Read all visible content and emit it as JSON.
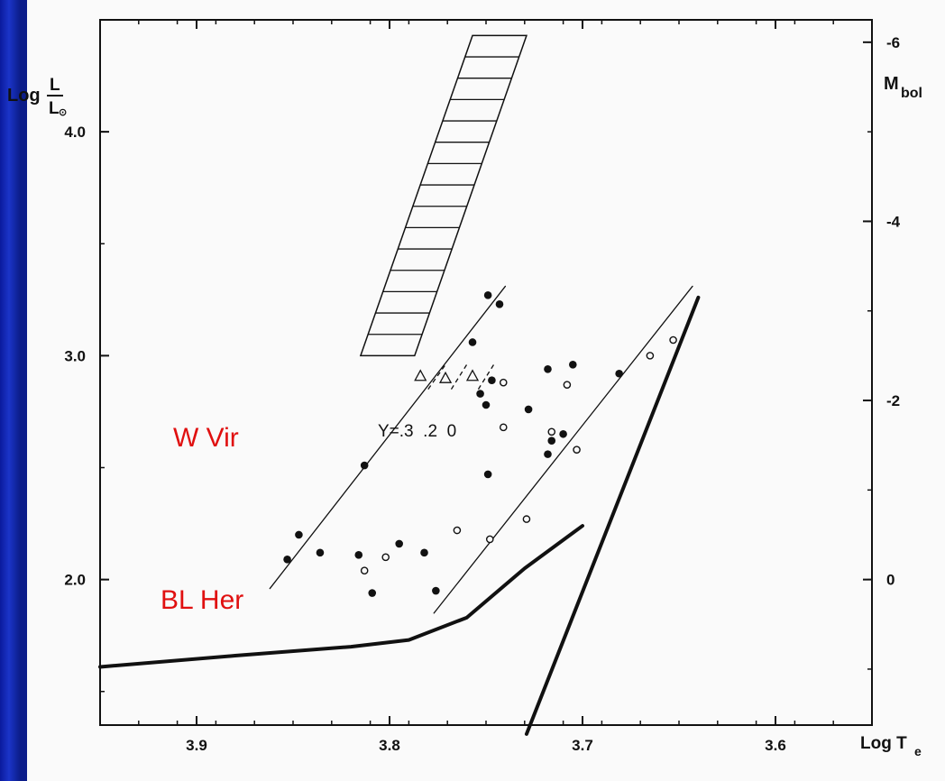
{
  "chart_data": {
    "type": "scatter",
    "xlabel": "Log T",
    "xlabel_sub": "e",
    "ylabel_left": "Log",
    "ylabel_left_num": "L",
    "ylabel_left_den": "L",
    "ylabel_left_den_sub": "⊙",
    "ylabel_right": "M",
    "ylabel_right_sub": "bol",
    "xlim": [
      3.95,
      3.55
    ],
    "ylim": [
      1.35,
      4.5
    ],
    "x_ticks": [
      {
        "value": 3.9,
        "label": "3.9"
      },
      {
        "value": 3.8,
        "label": "3.8"
      },
      {
        "value": 3.7,
        "label": "3.7"
      },
      {
        "value": 3.6,
        "label": "3.6"
      }
    ],
    "y_ticks_left": [
      {
        "value": 2.0,
        "label": "2.0"
      },
      {
        "value": 3.0,
        "label": "3.0"
      },
      {
        "value": 4.0,
        "label": "4.0"
      }
    ],
    "y_ticks_right": [
      {
        "value": 2.0,
        "label": "0"
      },
      {
        "value": 2.8,
        "label": "-2"
      },
      {
        "value": 3.6,
        "label": "-4"
      },
      {
        "value": 4.4,
        "label": "-6"
      }
    ],
    "filled_points": [
      {
        "x": 3.853,
        "y": 2.09
      },
      {
        "x": 3.847,
        "y": 2.2
      },
      {
        "x": 3.836,
        "y": 2.12
      },
      {
        "x": 3.813,
        "y": 2.51
      },
      {
        "x": 3.816,
        "y": 2.11
      },
      {
        "x": 3.809,
        "y": 1.94
      },
      {
        "x": 3.795,
        "y": 2.16
      },
      {
        "x": 3.782,
        "y": 2.12
      },
      {
        "x": 3.776,
        "y": 1.95
      },
      {
        "x": 3.757,
        "y": 3.06
      },
      {
        "x": 3.753,
        "y": 2.83
      },
      {
        "x": 3.75,
        "y": 2.78
      },
      {
        "x": 3.749,
        "y": 2.47
      },
      {
        "x": 3.747,
        "y": 2.89
      },
      {
        "x": 3.749,
        "y": 3.27
      },
      {
        "x": 3.743,
        "y": 3.23
      },
      {
        "x": 3.728,
        "y": 2.76
      },
      {
        "x": 3.718,
        "y": 2.94
      },
      {
        "x": 3.718,
        "y": 2.56
      },
      {
        "x": 3.716,
        "y": 2.62
      },
      {
        "x": 3.71,
        "y": 2.65
      },
      {
        "x": 3.705,
        "y": 2.96
      },
      {
        "x": 3.681,
        "y": 2.92
      }
    ],
    "open_points": [
      {
        "x": 3.813,
        "y": 2.04
      },
      {
        "x": 3.802,
        "y": 2.1
      },
      {
        "x": 3.765,
        "y": 2.22
      },
      {
        "x": 3.748,
        "y": 2.18
      },
      {
        "x": 3.741,
        "y": 2.88
      },
      {
        "x": 3.741,
        "y": 2.68
      },
      {
        "x": 3.729,
        "y": 2.27
      },
      {
        "x": 3.716,
        "y": 2.66
      },
      {
        "x": 3.708,
        "y": 2.87
      },
      {
        "x": 3.703,
        "y": 2.58
      },
      {
        "x": 3.665,
        "y": 3.0
      },
      {
        "x": 3.653,
        "y": 3.07
      }
    ],
    "triangle_points": [
      {
        "x": 3.784,
        "y": 2.91
      },
      {
        "x": 3.771,
        "y": 2.9
      },
      {
        "x": 3.757,
        "y": 2.91
      }
    ],
    "lines": [
      {
        "name": "blue-edge",
        "points": [
          [
            3.862,
            1.96
          ],
          [
            3.74,
            3.31
          ]
        ],
        "width": 1.3
      },
      {
        "name": "red-edge",
        "points": [
          [
            3.777,
            1.85
          ],
          [
            3.643,
            3.31
          ]
        ],
        "width": 1.3
      },
      {
        "name": "giant-branch",
        "points": [
          [
            3.729,
            1.31
          ],
          [
            3.64,
            3.26
          ]
        ],
        "width": 4
      },
      {
        "name": "hb-curve",
        "points": [
          [
            3.95,
            1.61
          ],
          [
            3.88,
            1.66
          ],
          [
            3.82,
            1.7
          ],
          [
            3.79,
            1.73
          ],
          [
            3.76,
            1.83
          ],
          [
            3.73,
            2.05
          ],
          [
            3.7,
            2.24
          ]
        ],
        "width": 4
      }
    ],
    "dashed_segments": [
      {
        "points": [
          [
            3.78,
            2.85
          ],
          [
            3.771,
            2.96
          ]
        ]
      },
      {
        "points": [
          [
            3.768,
            2.85
          ],
          [
            3.76,
            2.96
          ]
        ]
      },
      {
        "points": [
          [
            3.754,
            2.85
          ],
          [
            3.746,
            2.96
          ]
        ]
      }
    ],
    "strip": {
      "corners": [
        [
          3.815,
          3.0
        ],
        [
          3.787,
          3.0
        ],
        [
          3.729,
          4.43
        ],
        [
          3.757,
          4.43
        ]
      ],
      "rungs": 15
    },
    "annotations": {
      "helium_label": "Y=.3  .2  0"
    },
    "labels": {
      "w_vir": "W Vir",
      "bl_her": "BL Her"
    },
    "colors": {
      "label_red": "#e01010",
      "ink": "#111111"
    }
  }
}
